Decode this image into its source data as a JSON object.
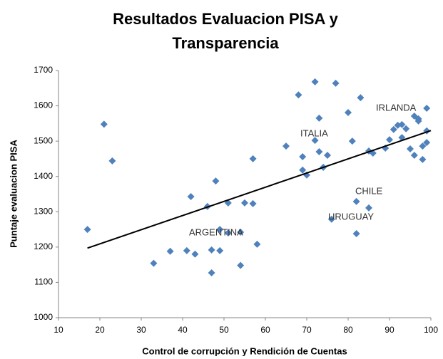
{
  "chart_data": {
    "type": "scatter",
    "title": [
      "Resultados Evaluacion PISA y",
      "Transparencia"
    ],
    "x_label": "Control de corrupción y Rendición de Cuentas",
    "y_label": "Puntaje evaluacion PISA",
    "xlim": [
      10,
      100
    ],
    "xticks": [
      10,
      20,
      30,
      40,
      50,
      60,
      70,
      80,
      90,
      100
    ],
    "ylim": [
      1000,
      1700
    ],
    "yticks": [
      1000,
      1100,
      1200,
      1300,
      1400,
      1500,
      1600,
      1700
    ],
    "grid": false,
    "series": [
      {
        "color": "#4f81bd",
        "x": [
          17,
          21,
          23,
          33,
          37,
          41,
          42,
          43,
          46,
          47,
          47,
          48,
          49,
          49,
          51,
          51,
          54,
          54,
          55,
          57,
          57,
          58,
          65,
          68,
          69,
          69,
          70,
          72,
          72,
          73,
          73,
          74,
          75,
          76,
          77,
          80,
          81,
          82,
          82,
          83,
          85,
          85,
          86,
          89,
          90,
          91,
          92,
          93,
          93,
          94,
          95,
          96,
          96,
          97,
          97,
          98,
          98,
          99,
          99,
          99
        ],
        "values": [
          1250,
          1548,
          1444,
          1154,
          1188,
          1190,
          1343,
          1180,
          1315,
          1192,
          1127,
          1387,
          1250,
          1190,
          1240,
          1325,
          1148,
          1242,
          1325,
          1323,
          1450,
          1208,
          1486,
          1631,
          1456,
          1418,
          1404,
          1668,
          1502,
          1470,
          1565,
          1426,
          1460,
          1279,
          1664,
          1581,
          1500,
          1238,
          1329,
          1623,
          1472,
          1311,
          1466,
          1480,
          1504,
          1533,
          1545,
          1510,
          1547,
          1535,
          1478,
          1571,
          1460,
          1563,
          1557,
          1486,
          1448,
          1593,
          1529,
          1496
        ]
      }
    ],
    "trendline": {
      "color": "#000000",
      "x": [
        17,
        100
      ],
      "values": [
        1197,
        1530
      ]
    },
    "annotations": [
      "IRLANDA",
      "ITALIA",
      "CHILE",
      "URUGUAY",
      "ARGENTINA"
    ]
  }
}
